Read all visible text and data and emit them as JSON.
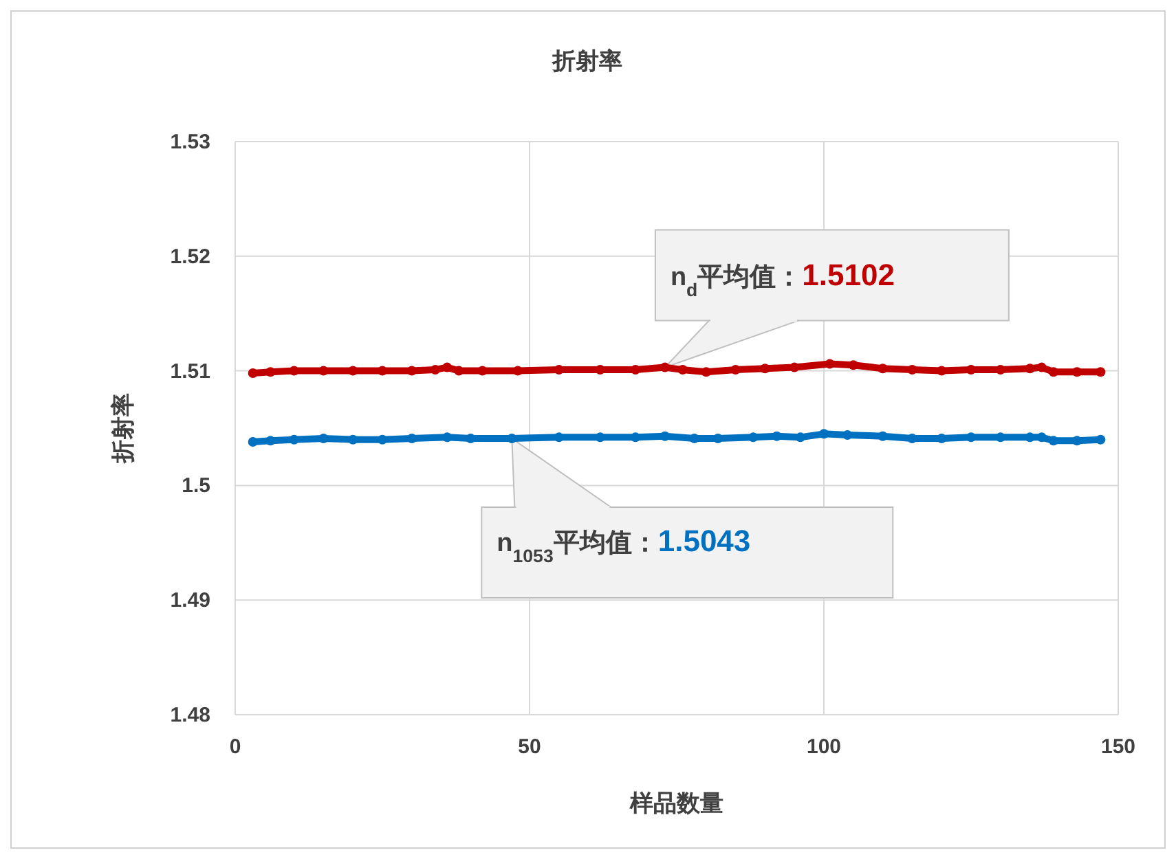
{
  "chart_data": {
    "type": "line",
    "title": "折射率",
    "xlabel": "样品数量",
    "ylabel": "折射率",
    "xlim": [
      0,
      150
    ],
    "xticks": [
      0,
      50,
      100,
      150
    ],
    "ylim": [
      1.48,
      1.53
    ],
    "yticks": [
      1.48,
      1.49,
      1.5,
      1.51,
      1.52,
      1.53
    ],
    "grid": true,
    "marker": "circle",
    "line_style": "solid",
    "series": [
      {
        "color": "#c00000",
        "x": [
          3,
          6,
          10,
          15,
          20,
          25,
          30,
          34,
          36,
          38,
          42,
          48,
          55,
          62,
          68,
          73,
          76,
          80,
          85,
          90,
          95,
          101,
          105,
          110,
          115,
          120,
          125,
          130,
          135,
          137,
          139,
          143,
          147
        ],
        "values": [
          1.5098,
          1.5099,
          1.51,
          1.51,
          1.51,
          1.51,
          1.51,
          1.5101,
          1.5103,
          1.51,
          1.51,
          1.51,
          1.5101,
          1.5101,
          1.5101,
          1.5103,
          1.5101,
          1.5099,
          1.5101,
          1.5102,
          1.5103,
          1.5106,
          1.5105,
          1.5102,
          1.5101,
          1.51,
          1.5101,
          1.5101,
          1.5102,
          1.5103,
          1.5099,
          1.5099,
          1.5099
        ]
      },
      {
        "color": "#0070c0",
        "x": [
          3,
          6,
          10,
          15,
          20,
          25,
          30,
          36,
          40,
          47,
          55,
          62,
          68,
          73,
          78,
          82,
          88,
          92,
          96,
          100,
          104,
          110,
          115,
          120,
          125,
          130,
          135,
          137,
          139,
          143,
          147
        ],
        "values": [
          1.5038,
          1.5039,
          1.504,
          1.5041,
          1.504,
          1.504,
          1.5041,
          1.5042,
          1.5041,
          1.5041,
          1.5042,
          1.5042,
          1.5042,
          1.5043,
          1.5041,
          1.5041,
          1.5042,
          1.5043,
          1.5042,
          1.5045,
          1.5044,
          1.5043,
          1.5041,
          1.5041,
          1.5042,
          1.5042,
          1.5042,
          1.5042,
          1.5039,
          1.5039,
          1.504
        ]
      }
    ],
    "annotations": [
      {
        "text": "n$_{d}$平均值：1.5102",
        "x": 73,
        "y": 1.5103
      },
      {
        "text": "n$_{1053}$平均值：1.5043",
        "x": 47,
        "y": 1.5041
      }
    ]
  }
}
